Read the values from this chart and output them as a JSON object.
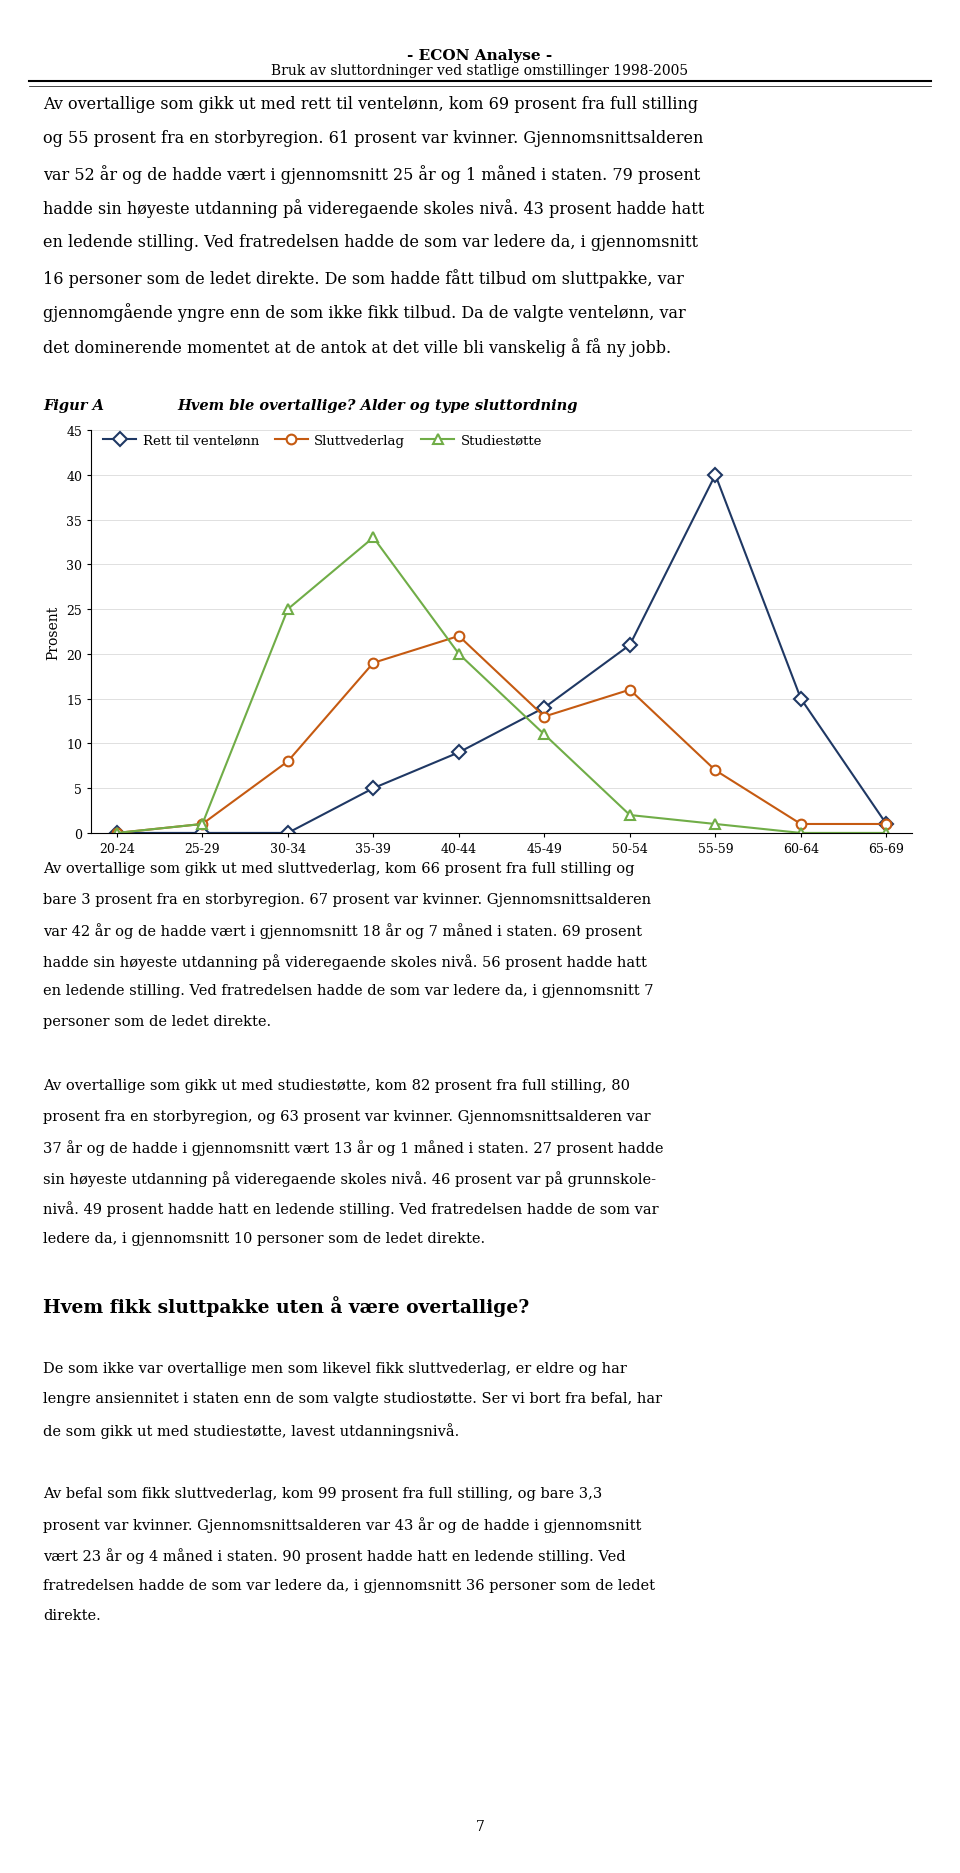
{
  "header_line1": "- ECON Analyse -",
  "header_line2": "Bruk av sluttordninger ved statlige omstillinger 1998-2005",
  "age_categories": [
    "20-24",
    "25-29",
    "30-34",
    "35-39",
    "40-44",
    "45-49",
    "50-54",
    "55-59",
    "60-64",
    "65-69"
  ],
  "ventelonn": [
    0,
    0,
    0,
    5,
    9,
    14,
    21,
    40,
    15,
    1
  ],
  "sluttvederlag": [
    0,
    1,
    8,
    19,
    22,
    13,
    16,
    7,
    1,
    1
  ],
  "studiestotte": [
    0,
    1,
    25,
    33,
    20,
    11,
    2,
    1,
    0,
    0
  ],
  "ventelonn_color": "#1F3864",
  "sluttvederlag_color": "#C55A11",
  "studiestotte_color": "#70AD47",
  "ylabel": "Prosent",
  "ylim_max": 45,
  "yticks": [
    0,
    5,
    10,
    15,
    20,
    25,
    30,
    35,
    40,
    45
  ],
  "figure_label": "Figur A",
  "figure_title": "Hvem ble overtallige? Alder og type sluttordning",
  "page_number": "7",
  "fig_width": 9.6,
  "fig_height": 18.74,
  "dpi": 100
}
